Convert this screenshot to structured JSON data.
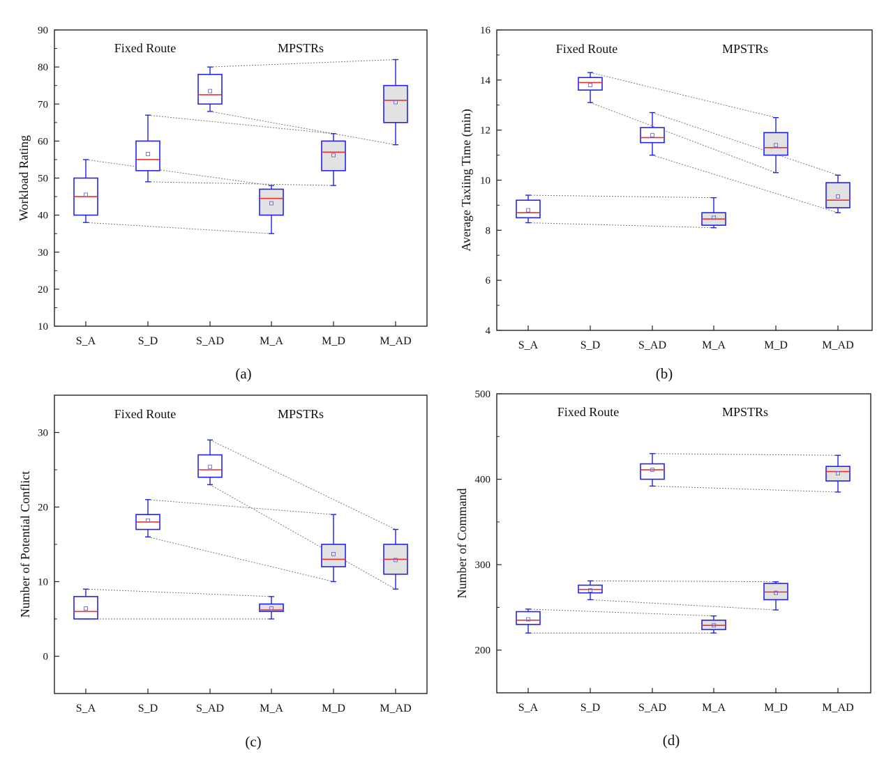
{
  "chart_data": [
    {
      "type": "box",
      "panel_label": "(a)",
      "ylabel": "Workload Rating",
      "ylim": [
        10,
        90
      ],
      "yticks": [
        10,
        20,
        30,
        40,
        50,
        60,
        70,
        80,
        90
      ],
      "categories": [
        "S_A",
        "S_D",
        "S_AD",
        "M_A",
        "M_D",
        "M_AD"
      ],
      "annotations": [
        "Fixed Route",
        "MPSTRs"
      ],
      "boxes": [
        {
          "min": 38,
          "q1": 40,
          "median": 45,
          "q3": 50,
          "max": 55,
          "mean": 45.5
        },
        {
          "min": 49,
          "q1": 52,
          "median": 55,
          "q3": 60,
          "max": 67,
          "mean": 56.5
        },
        {
          "min": 68,
          "q1": 70,
          "median": 72.5,
          "q3": 78,
          "max": 80,
          "mean": 73.5
        },
        {
          "min": 35,
          "q1": 40,
          "median": 44.5,
          "q3": 47,
          "max": 48,
          "mean": 43.2
        },
        {
          "min": 48,
          "q1": 52,
          "median": 57,
          "q3": 60,
          "max": 62,
          "mean": 56.2
        },
        {
          "min": 59,
          "q1": 65,
          "median": 71,
          "q3": 75,
          "max": 82,
          "mean": 70.5
        }
      ]
    },
    {
      "type": "box",
      "panel_label": "(b)",
      "ylabel": "Average Taxiing Time (min)",
      "ylim": [
        4,
        16
      ],
      "yticks": [
        4,
        6,
        8,
        10,
        12,
        14,
        16
      ],
      "categories": [
        "S_A",
        "S_D",
        "S_AD",
        "M_A",
        "M_D",
        "M_AD"
      ],
      "annotations": [
        "Fixed Route",
        "MPSTRs"
      ],
      "boxes": [
        {
          "min": 8.3,
          "q1": 8.5,
          "median": 8.7,
          "q3": 9.2,
          "max": 9.4,
          "mean": 8.8
        },
        {
          "min": 13.1,
          "q1": 13.6,
          "median": 13.9,
          "q3": 14.1,
          "max": 14.3,
          "mean": 13.8
        },
        {
          "min": 11.0,
          "q1": 11.5,
          "median": 11.7,
          "q3": 12.1,
          "max": 12.7,
          "mean": 11.8
        },
        {
          "min": 8.1,
          "q1": 8.2,
          "median": 8.45,
          "q3": 8.7,
          "max": 9.3,
          "mean": 8.5
        },
        {
          "min": 10.3,
          "q1": 11.0,
          "median": 11.3,
          "q3": 11.9,
          "max": 12.5,
          "mean": 11.4
        },
        {
          "min": 8.7,
          "q1": 8.9,
          "median": 9.2,
          "q3": 9.9,
          "max": 10.2,
          "mean": 9.35
        }
      ]
    },
    {
      "type": "box",
      "panel_label": "(c)",
      "ylabel": "Number of Potential Conflict",
      "ylim": [
        -5,
        35
      ],
      "yticks": [
        0,
        10,
        20,
        30
      ],
      "categories": [
        "S_A",
        "S_D",
        "S_AD",
        "M_A",
        "M_D",
        "M_AD"
      ],
      "annotations": [
        "Fixed Route",
        "MPSTRs"
      ],
      "boxes": [
        {
          "min": 5,
          "q1": 5,
          "median": 6,
          "q3": 8,
          "max": 9,
          "mean": 6.4
        },
        {
          "min": 16,
          "q1": 17,
          "median": 18,
          "q3": 19,
          "max": 21,
          "mean": 18.2
        },
        {
          "min": 23,
          "q1": 24,
          "median": 25,
          "q3": 27,
          "max": 29,
          "mean": 25.4
        },
        {
          "min": 5,
          "q1": 6,
          "median": 6.2,
          "q3": 7,
          "max": 8,
          "mean": 6.4
        },
        {
          "min": 10,
          "q1": 12,
          "median": 13,
          "q3": 15,
          "max": 19,
          "mean": 13.7
        },
        {
          "min": 9,
          "q1": 11,
          "median": 13,
          "q3": 15,
          "max": 17,
          "mean": 12.9
        }
      ]
    },
    {
      "type": "box",
      "panel_label": "(d)",
      "ylabel": "Number of Command",
      "ylim": [
        150,
        500
      ],
      "yticks": [
        200,
        300,
        400,
        500
      ],
      "categories": [
        "S_A",
        "S_D",
        "S_AD",
        "M_A",
        "M_D",
        "M_AD"
      ],
      "annotations": [
        "Fixed Route",
        "MPSTRs"
      ],
      "boxes": [
        {
          "min": 220,
          "q1": 230,
          "median": 235,
          "q3": 245,
          "max": 248,
          "mean": 236
        },
        {
          "min": 259,
          "q1": 267,
          "median": 271,
          "q3": 276,
          "max": 281,
          "mean": 270
        },
        {
          "min": 392,
          "q1": 400,
          "median": 411,
          "q3": 418,
          "max": 430,
          "mean": 411
        },
        {
          "min": 220,
          "q1": 224,
          "median": 229,
          "q3": 235,
          "max": 240,
          "mean": 229
        },
        {
          "min": 247,
          "q1": 259,
          "median": 268,
          "q3": 278,
          "max": 280,
          "mean": 267
        },
        {
          "min": 385,
          "q1": 398,
          "median": 409,
          "q3": 415,
          "max": 428,
          "mean": 407
        }
      ]
    }
  ]
}
